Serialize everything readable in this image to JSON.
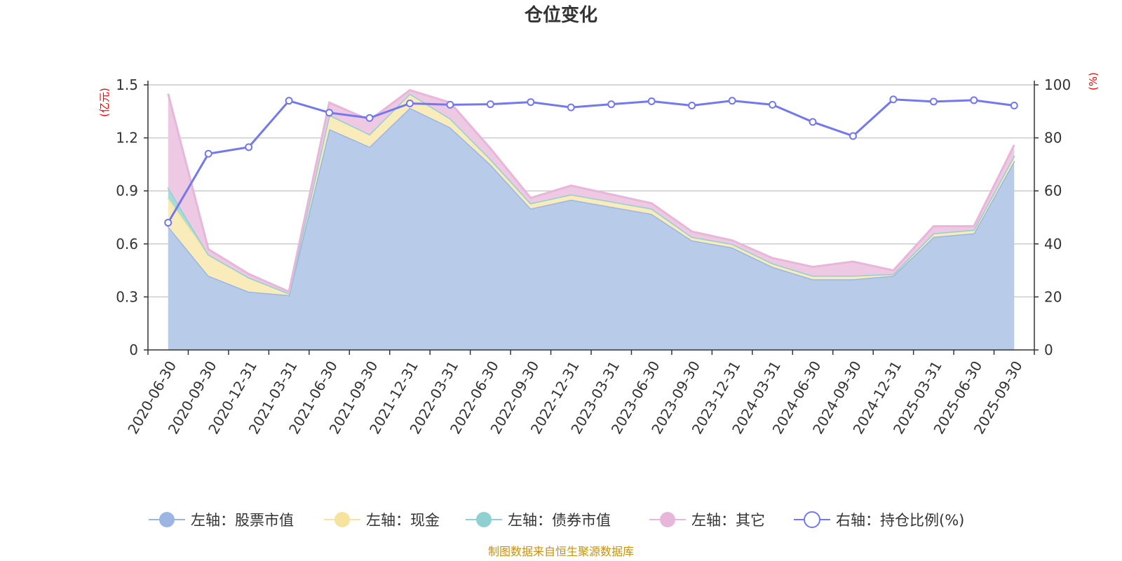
{
  "chart_data": {
    "type": "area",
    "title": "仓位变化",
    "source_note": "制图数据来自恒生聚源数据库",
    "y_left_unit": "(亿元)",
    "y_right_unit": "(%)",
    "y_left_range": [
      0,
      1.5
    ],
    "y_left_ticks": [
      "0",
      "0.3",
      "0.6",
      "0.9",
      "1.2",
      "1.5"
    ],
    "y_left_tick_values": [
      0,
      0.3,
      0.6,
      0.9,
      1.2,
      1.5
    ],
    "y_right_range": [
      0,
      100
    ],
    "y_right_ticks": [
      "0",
      "20",
      "40",
      "60",
      "80",
      "100"
    ],
    "y_right_tick_values": [
      0,
      20,
      40,
      60,
      80,
      100
    ],
    "grid": true,
    "legend_position": "bottom",
    "categories": [
      "2020-06-30",
      "2020-09-30",
      "2020-12-31",
      "2021-03-31",
      "2021-06-30",
      "2021-09-30",
      "2021-12-31",
      "2022-03-31",
      "2022-06-30",
      "2022-09-30",
      "2022-12-31",
      "2023-03-31",
      "2023-06-30",
      "2023-09-30",
      "2023-12-31",
      "2024-03-31",
      "2024-06-30",
      "2024-09-30",
      "2024-12-31",
      "2025-03-31",
      "2025-06-30",
      "2025-09-30"
    ],
    "series": [
      {
        "name": "左轴：股票市值",
        "axis": "left",
        "kind": "area",
        "color": "#9bb6e2",
        "fill": "#b8cbe9",
        "values": [
          0.7,
          0.42,
          0.33,
          0.31,
          1.25,
          1.15,
          1.37,
          1.26,
          1.05,
          0.8,
          0.85,
          0.81,
          0.77,
          0.62,
          0.58,
          0.47,
          0.4,
          0.4,
          0.42,
          0.64,
          0.66,
          1.07
        ]
      },
      {
        "name": "左轴：现金",
        "axis": "left",
        "kind": "area",
        "color": "#f7e39e",
        "fill": "#faecba",
        "values": [
          0.16,
          0.12,
          0.08,
          0.01,
          0.08,
          0.07,
          0.08,
          0.05,
          0.03,
          0.03,
          0.03,
          0.03,
          0.03,
          0.02,
          0.02,
          0.02,
          0.02,
          0.02,
          0.01,
          0.02,
          0.02,
          0.03
        ]
      },
      {
        "name": "左轴：债券市值",
        "axis": "left",
        "kind": "area",
        "color": "#8fd1d0",
        "fill": "#a8dcdb",
        "values": [
          0.06,
          0.0,
          0.0,
          0.0,
          0.0,
          0.0,
          0.0,
          0.0,
          0.0,
          0.0,
          0.0,
          0.0,
          0.0,
          0.0,
          0.0,
          0.0,
          0.0,
          0.0,
          0.0,
          0.0,
          0.0,
          0.0
        ]
      },
      {
        "name": "左轴：其它",
        "axis": "left",
        "kind": "area",
        "color": "#e7b6d9",
        "fill": "#edc9e3",
        "values": [
          0.53,
          0.03,
          0.02,
          0.01,
          0.07,
          0.08,
          0.02,
          0.09,
          0.06,
          0.03,
          0.05,
          0.04,
          0.03,
          0.03,
          0.02,
          0.03,
          0.05,
          0.08,
          0.02,
          0.04,
          0.02,
          0.06
        ]
      },
      {
        "name": "右轴：持仓比例(%)",
        "axis": "right",
        "kind": "line",
        "color": "#7478ee",
        "values": [
          48.0,
          74.0,
          76.5,
          94.0,
          89.5,
          87.5,
          93.0,
          92.5,
          92.7,
          93.5,
          91.5,
          92.7,
          93.8,
          92.2,
          94.0,
          92.5,
          86.0,
          80.7,
          94.5,
          93.7,
          94.2,
          92.2
        ]
      }
    ]
  }
}
